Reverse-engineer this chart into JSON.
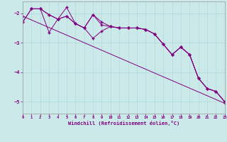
{
  "xlabel": "Windchill (Refroidissement éolien,°C)",
  "background_color": "#cce9e9",
  "line_color": "#800080",
  "marker": "+",
  "xlim": [
    0,
    23
  ],
  "ylim": [
    -5.4,
    -1.6
  ],
  "yticks": [
    -5,
    -4,
    -3,
    -2
  ],
  "xticks": [
    0,
    1,
    2,
    3,
    4,
    5,
    6,
    7,
    8,
    9,
    10,
    11,
    12,
    13,
    14,
    15,
    16,
    17,
    18,
    19,
    20,
    21,
    22,
    23
  ],
  "linear_line": [
    [
      0,
      -2.1
    ],
    [
      23,
      -5.05
    ]
  ],
  "series1": [
    [
      0,
      -2.3
    ],
    [
      1,
      -1.85
    ],
    [
      2,
      -1.85
    ],
    [
      3,
      -2.05
    ],
    [
      4,
      -2.2
    ],
    [
      5,
      -2.1
    ],
    [
      6,
      -2.35
    ],
    [
      7,
      -2.5
    ],
    [
      8,
      -2.05
    ],
    [
      9,
      -2.4
    ],
    [
      10,
      -2.45
    ],
    [
      11,
      -2.5
    ],
    [
      12,
      -2.5
    ],
    [
      13,
      -2.5
    ],
    [
      14,
      -2.55
    ],
    [
      15,
      -2.7
    ],
    [
      16,
      -3.05
    ],
    [
      17,
      -3.4
    ],
    [
      18,
      -3.15
    ],
    [
      19,
      -3.4
    ],
    [
      20,
      -4.2
    ],
    [
      21,
      -4.55
    ],
    [
      22,
      -4.65
    ],
    [
      23,
      -5.0
    ]
  ],
  "series2": [
    [
      0,
      -2.3
    ],
    [
      1,
      -1.85
    ],
    [
      2,
      -1.85
    ],
    [
      3,
      -2.65
    ],
    [
      4,
      -2.2
    ],
    [
      5,
      -2.1
    ],
    [
      6,
      -2.35
    ],
    [
      7,
      -2.5
    ],
    [
      8,
      -2.05
    ],
    [
      9,
      -2.3
    ],
    [
      10,
      -2.45
    ],
    [
      11,
      -2.5
    ],
    [
      12,
      -2.5
    ],
    [
      13,
      -2.5
    ],
    [
      14,
      -2.55
    ],
    [
      15,
      -2.7
    ],
    [
      16,
      -3.05
    ],
    [
      17,
      -3.4
    ],
    [
      18,
      -3.15
    ],
    [
      19,
      -3.4
    ],
    [
      20,
      -4.2
    ],
    [
      21,
      -4.55
    ],
    [
      22,
      -4.65
    ],
    [
      23,
      -5.0
    ]
  ],
  "series3": [
    [
      1,
      -1.85
    ],
    [
      2,
      -1.85
    ],
    [
      3,
      -2.05
    ],
    [
      4,
      -2.2
    ],
    [
      5,
      -1.8
    ],
    [
      6,
      -2.35
    ],
    [
      7,
      -2.5
    ],
    [
      8,
      -2.85
    ],
    [
      9,
      -2.6
    ],
    [
      10,
      -2.45
    ],
    [
      11,
      -2.5
    ],
    [
      12,
      -2.5
    ],
    [
      13,
      -2.5
    ],
    [
      14,
      -2.55
    ],
    [
      15,
      -2.7
    ],
    [
      16,
      -3.05
    ],
    [
      17,
      -3.4
    ],
    [
      18,
      -3.15
    ],
    [
      19,
      -3.4
    ],
    [
      20,
      -4.2
    ],
    [
      21,
      -4.55
    ],
    [
      22,
      -4.65
    ],
    [
      23,
      -5.0
    ]
  ]
}
